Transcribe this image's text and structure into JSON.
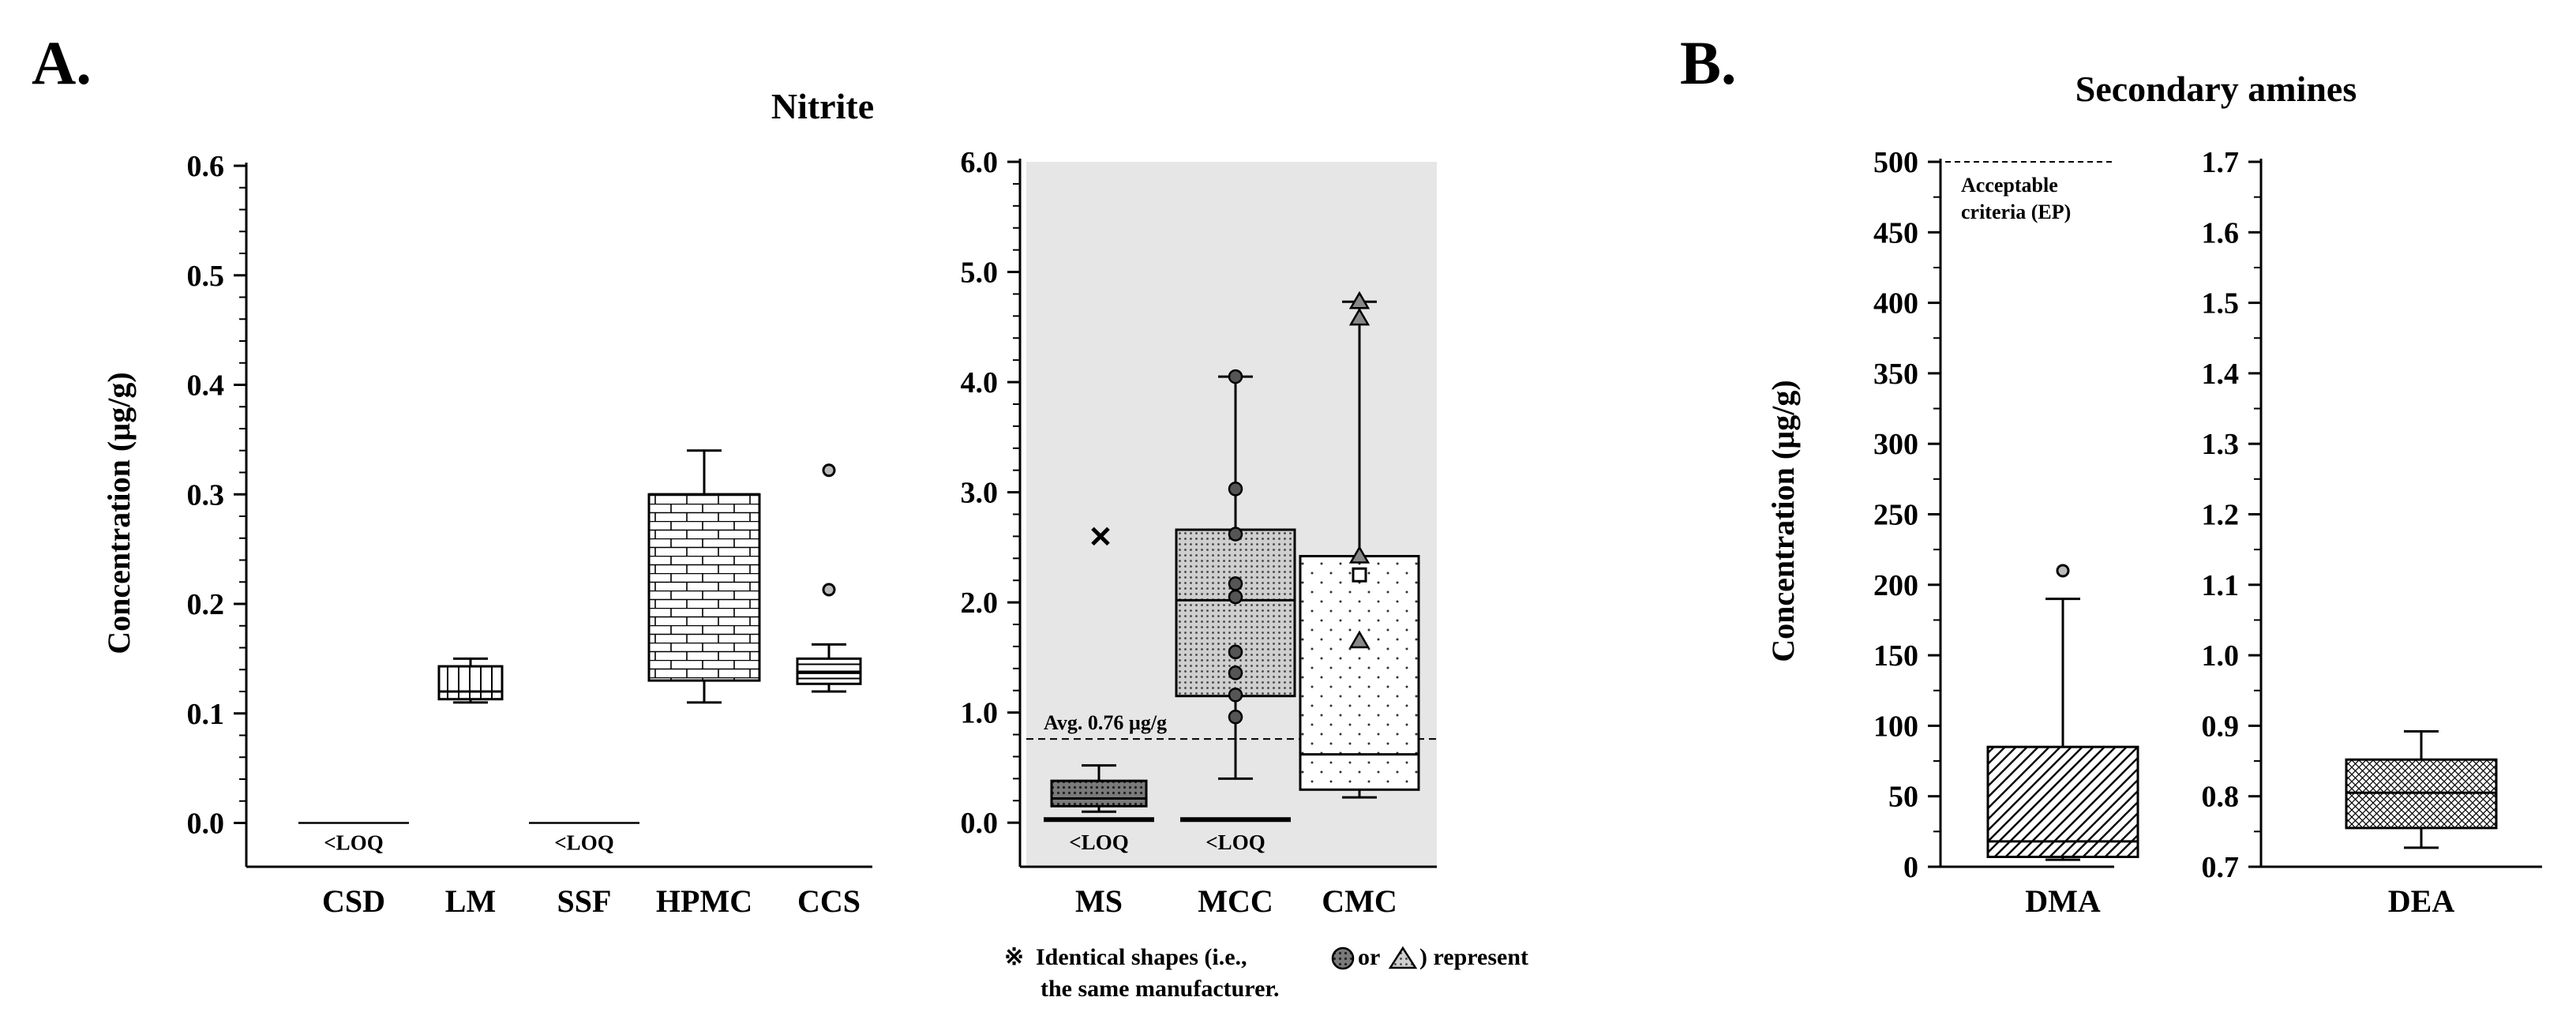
{
  "panels": {
    "a": "A.",
    "b": "B."
  },
  "nitrite_title": "Nitrite",
  "amines_title": "Secondary amines",
  "ylabel": "Concentration (µg/g)",
  "loq_label": "<LOQ",
  "footnote": {
    "symbol": "※",
    "line1": "Identical shapes (i.e., ",
    "or": "or",
    "line1_end": ") represent",
    "line2": "the same manufacturer."
  },
  "colors": {
    "shade": "#e6e6e6",
    "box_fill": "#ffffff",
    "ink": "#000000",
    "accent_box": "#cfcfcf"
  },
  "chart_data": [
    {
      "type": "box",
      "id": "nitrite_left",
      "title": "Nitrite",
      "ylabel": "Concentration (µg/g)",
      "ylim": [
        -0.04,
        0.6
      ],
      "yticks": [
        0.0,
        0.1,
        0.2,
        0.3,
        0.4,
        0.5,
        0.6
      ],
      "ytick_labels": [
        "0.0",
        "0.1",
        "0.2",
        "0.3",
        "0.4",
        "0.5",
        "0.6"
      ],
      "categories": [
        "CSD",
        "LM",
        "SSF",
        "HPMC",
        "CCS"
      ],
      "boxes": [
        {
          "name": "CSD",
          "below_loq": true,
          "pattern": "none"
        },
        {
          "name": "LM",
          "whisker_low": 0.11,
          "q1": 0.113,
          "median": 0.12,
          "q3": 0.143,
          "whisker_high": 0.15,
          "outliers": [],
          "pattern": "vlines"
        },
        {
          "name": "SSF",
          "below_loq": true,
          "pattern": "none"
        },
        {
          "name": "HPMC",
          "whisker_low": 0.11,
          "q1": 0.13,
          "median": 0.3,
          "q3": 0.3,
          "whisker_high": 0.34,
          "outliers": [],
          "pattern": "brick"
        },
        {
          "name": "CCS",
          "whisker_low": 0.12,
          "q1": 0.127,
          "median": 0.137,
          "q3": 0.15,
          "whisker_high": 0.163,
          "outliers": [
            0.213,
            0.322
          ],
          "pattern": "hlines"
        }
      ]
    },
    {
      "type": "box",
      "id": "nitrite_right",
      "ylim": [
        -0.4,
        6.0
      ],
      "yticks": [
        0.0,
        1.0,
        2.0,
        3.0,
        4.0,
        5.0,
        6.0
      ],
      "ytick_labels": [
        "0.0",
        "1.0",
        "2.0",
        "3.0",
        "4.0",
        "5.0",
        "6.0"
      ],
      "categories": [
        "MS",
        "MCC",
        "CMC"
      ],
      "average_line": {
        "value": 0.76,
        "label": "Avg. 0.76 µg/g"
      },
      "boxes": [
        {
          "name": "MS",
          "whisker_low": 0.1,
          "q1": 0.15,
          "median": 0.22,
          "q3": 0.38,
          "whisker_high": 0.52,
          "outliers": [
            {
              "value": 2.6,
              "marker": "x"
            }
          ],
          "also_below_loq": true,
          "pattern": "dots"
        },
        {
          "name": "MCC",
          "whisker_low": 0.4,
          "q1": 1.15,
          "median": 2.02,
          "q3": 2.66,
          "whisker_high": 4.05,
          "outliers": [],
          "also_below_loq": true,
          "pattern": "dots",
          "points": [
            {
              "value": 0.96,
              "marker": "circle"
            },
            {
              "value": 1.16,
              "marker": "circle"
            },
            {
              "value": 1.36,
              "marker": "circle"
            },
            {
              "value": 1.55,
              "marker": "circle"
            },
            {
              "value": 2.05,
              "marker": "circle"
            },
            {
              "value": 2.17,
              "marker": "circle"
            },
            {
              "value": 2.62,
              "marker": "circle"
            },
            {
              "value": 3.03,
              "marker": "circle"
            },
            {
              "value": 4.05,
              "marker": "circle"
            }
          ]
        },
        {
          "name": "CMC",
          "whisker_low": 0.23,
          "q1": 0.3,
          "median": 0.62,
          "q3": 2.42,
          "whisker_high": 4.73,
          "outliers": [],
          "pattern": "sparse-dots",
          "points": [
            {
              "value": 1.65,
              "marker": "triangle"
            },
            {
              "value": 2.42,
              "marker": "triangle"
            },
            {
              "value": 2.25,
              "marker": "square"
            },
            {
              "value": 4.58,
              "marker": "triangle"
            },
            {
              "value": 4.73,
              "marker": "triangle"
            }
          ]
        }
      ]
    },
    {
      "type": "box",
      "id": "amines_dma",
      "title": "Secondary amines",
      "ylabel": "Concentration (µg/g)",
      "ylim": [
        0,
        500
      ],
      "yticks": [
        0,
        50,
        100,
        150,
        200,
        250,
        300,
        350,
        400,
        450,
        500
      ],
      "ytick_labels": [
        "0",
        "50",
        "100",
        "150",
        "200",
        "250",
        "300",
        "350",
        "400",
        "450",
        "500"
      ],
      "categories": [
        "DMA"
      ],
      "reference_line": {
        "value": 500,
        "label_line1": "Acceptable",
        "label_line2": "criteria (EP)"
      },
      "boxes": [
        {
          "name": "DMA",
          "whisker_low": 5,
          "q1": 7,
          "median": 18,
          "q3": 85,
          "whisker_high": 190,
          "outliers": [
            210
          ],
          "pattern": "diag"
        }
      ]
    },
    {
      "type": "box",
      "id": "amines_dea",
      "ylim": [
        0.7,
        1.7
      ],
      "yticks": [
        0.7,
        0.8,
        0.9,
        1.0,
        1.1,
        1.2,
        1.3,
        1.4,
        1.5,
        1.6,
        1.7
      ],
      "ytick_labels": [
        "0.7",
        "0.8",
        "0.9",
        "1.0",
        "1.1",
        "1.2",
        "1.3",
        "1.4",
        "1.5",
        "1.6",
        "1.7"
      ],
      "categories": [
        "DEA"
      ],
      "boxes": [
        {
          "name": "DEA",
          "whisker_low": 0.727,
          "q1": 0.755,
          "median": 0.805,
          "q3": 0.852,
          "whisker_high": 0.892,
          "outliers": [],
          "pattern": "crosshatch"
        }
      ]
    }
  ]
}
